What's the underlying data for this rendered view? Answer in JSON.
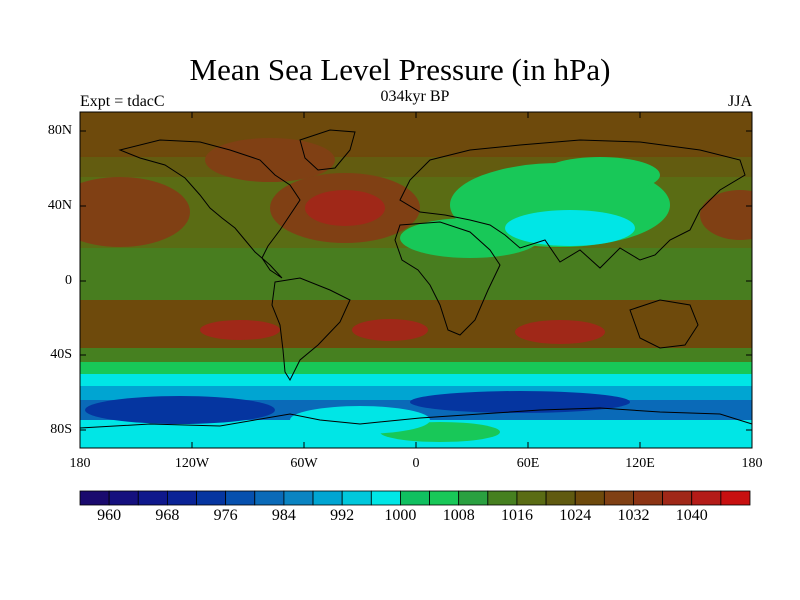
{
  "title": "Mean Sea Level Pressure (in hPa)",
  "experiment": "Expt = tdacC",
  "period": "034kyr BP",
  "season": "JJA",
  "lat_labels": [
    "80N",
    "40N",
    "0",
    "40S",
    "80S"
  ],
  "lon_labels": [
    "180",
    "120W",
    "60W",
    "0",
    "60E",
    "120E",
    "180"
  ],
  "colorbar": {
    "labels": [
      "960",
      "968",
      "976",
      "984",
      "992",
      "1000",
      "1008",
      "1016",
      "1024",
      "1032",
      "1040"
    ],
    "colors": [
      "#1a0a6e",
      "#15107e",
      "#0f188c",
      "#0a2396",
      "#0535a0",
      "#0650ae",
      "#0a6ab8",
      "#0a84c2",
      "#00a5d2",
      "#00c8dc",
      "#00e6e6",
      "#10c060",
      "#18c858",
      "#2aa040",
      "#468020",
      "#5a6c14",
      "#605a10",
      "#6e4a0c",
      "#804014",
      "#8c3414",
      "#a02818",
      "#b41c18",
      "#c81010"
    ]
  },
  "map_colors": {
    "background_band": "#6e4a0c",
    "mid_olive": "#5a6c14",
    "green_olive": "#468020",
    "bright_green": "#18c858",
    "cyan": "#00e6e6",
    "light_blue": "#00a5d2",
    "mid_blue": "#0a6ab8",
    "dark_blue": "#0535a0",
    "high_red": "#a02818",
    "brown_high": "#804014"
  }
}
